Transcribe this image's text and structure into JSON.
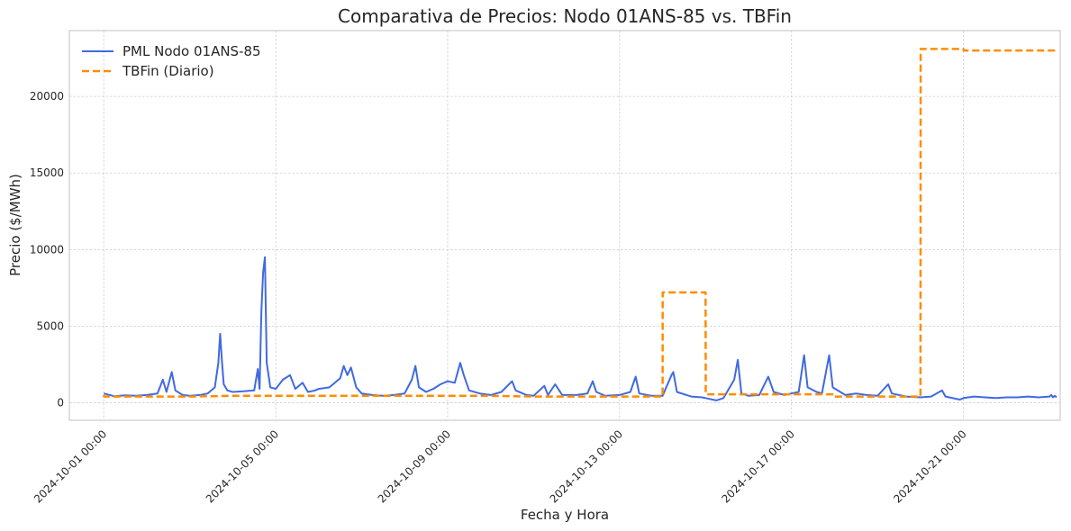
{
  "chart_data": {
    "type": "line",
    "title": "Comparativa de Precios: Nodo 01ANS-85 vs. TBFin",
    "xlabel": "Fecha y Hora",
    "ylabel": "Precio ($/MWh)",
    "xlim": [
      "2024-09-30T04:48",
      "2024-10-23T06:00"
    ],
    "ylim": [
      -1150,
      24300
    ],
    "x_ticks": [
      "2024-10-01 00:00",
      "2024-10-05 00:00",
      "2024-10-09 00:00",
      "2024-10-13 00:00",
      "2024-10-17 00:00",
      "2024-10-21 00:00"
    ],
    "y_ticks": [
      0,
      5000,
      10000,
      15000,
      20000
    ],
    "grid": true,
    "legend_position": "top-left",
    "colors": {
      "pml": "#4169e1",
      "tbfin": "#ff8c00",
      "grid": "#cccccc",
      "frame": "#cccccc"
    },
    "series": [
      {
        "name": "PML Nodo 01ANS-85",
        "style": "solid",
        "points": [
          [
            "2024-10-01T00:00",
            600
          ],
          [
            "2024-10-01T06:00",
            420
          ],
          [
            "2024-10-01T12:00",
            480
          ],
          [
            "2024-10-01T18:00",
            450
          ],
          [
            "2024-10-02T00:00",
            500
          ],
          [
            "2024-10-02T06:00",
            600
          ],
          [
            "2024-10-02T09:00",
            1500
          ],
          [
            "2024-10-02T11:00",
            700
          ],
          [
            "2024-10-02T14:00",
            2000
          ],
          [
            "2024-10-02T16:00",
            800
          ],
          [
            "2024-10-02T20:00",
            500
          ],
          [
            "2024-10-03T00:00",
            450
          ],
          [
            "2024-10-03T06:00",
            500
          ],
          [
            "2024-10-03T10:00",
            600
          ],
          [
            "2024-10-03T14:00",
            1000
          ],
          [
            "2024-10-03T16:00",
            2600
          ],
          [
            "2024-10-03T17:00",
            4500
          ],
          [
            "2024-10-03T18:00",
            2700
          ],
          [
            "2024-10-03T19:00",
            1200
          ],
          [
            "2024-10-03T21:00",
            800
          ],
          [
            "2024-10-04T00:00",
            700
          ],
          [
            "2024-10-04T06:00",
            750
          ],
          [
            "2024-10-04T12:00",
            800
          ],
          [
            "2024-10-04T14:00",
            2200
          ],
          [
            "2024-10-04T15:00",
            900
          ],
          [
            "2024-10-04T16:00",
            6000
          ],
          [
            "2024-10-04T17:00",
            8500
          ],
          [
            "2024-10-04T18:00",
            9500
          ],
          [
            "2024-10-04T19:00",
            2600
          ],
          [
            "2024-10-04T21:00",
            1000
          ],
          [
            "2024-10-05T00:00",
            900
          ],
          [
            "2024-10-05T04:00",
            1500
          ],
          [
            "2024-10-05T08:00",
            1800
          ],
          [
            "2024-10-05T11:00",
            900
          ],
          [
            "2024-10-05T15:00",
            1300
          ],
          [
            "2024-10-05T18:00",
            700
          ],
          [
            "2024-10-05T22:00",
            800
          ],
          [
            "2024-10-06T00:00",
            900
          ],
          [
            "2024-10-06T06:00",
            1000
          ],
          [
            "2024-10-06T12:00",
            1600
          ],
          [
            "2024-10-06T14:00",
            2400
          ],
          [
            "2024-10-06T16:00",
            1800
          ],
          [
            "2024-10-06T18:00",
            2300
          ],
          [
            "2024-10-06T21:00",
            1000
          ],
          [
            "2024-10-07T00:00",
            600
          ],
          [
            "2024-10-07T06:00",
            500
          ],
          [
            "2024-10-07T12:00",
            450
          ],
          [
            "2024-10-07T18:00",
            500
          ],
          [
            "2024-10-08T00:00",
            600
          ],
          [
            "2024-10-08T04:00",
            1500
          ],
          [
            "2024-10-08T06:00",
            2400
          ],
          [
            "2024-10-08T08:00",
            1000
          ],
          [
            "2024-10-08T12:00",
            700
          ],
          [
            "2024-10-08T16:00",
            900
          ],
          [
            "2024-10-08T20:00",
            1200
          ],
          [
            "2024-10-09T00:00",
            1400
          ],
          [
            "2024-10-09T04:00",
            1300
          ],
          [
            "2024-10-09T07:00",
            2600
          ],
          [
            "2024-10-09T09:00",
            1800
          ],
          [
            "2024-10-09T12:00",
            800
          ],
          [
            "2024-10-09T18:00",
            600
          ],
          [
            "2024-10-10T00:00",
            500
          ],
          [
            "2024-10-10T06:00",
            700
          ],
          [
            "2024-10-10T12:00",
            1400
          ],
          [
            "2024-10-10T14:00",
            800
          ],
          [
            "2024-10-10T20:00",
            500
          ],
          [
            "2024-10-11T00:00",
            450
          ],
          [
            "2024-10-11T06:00",
            1100
          ],
          [
            "2024-10-11T08:00",
            500
          ],
          [
            "2024-10-11T12:00",
            1200
          ],
          [
            "2024-10-11T16:00",
            500
          ],
          [
            "2024-10-12T00:00",
            500
          ],
          [
            "2024-10-12T06:00",
            600
          ],
          [
            "2024-10-12T09:00",
            1400
          ],
          [
            "2024-10-12T11:00",
            700
          ],
          [
            "2024-10-12T16:00",
            450
          ],
          [
            "2024-10-13T00:00",
            500
          ],
          [
            "2024-10-13T06:00",
            700
          ],
          [
            "2024-10-13T09:00",
            1700
          ],
          [
            "2024-10-13T11:00",
            600
          ],
          [
            "2024-10-13T18:00",
            450
          ],
          [
            "2024-10-14T00:00",
            450
          ],
          [
            "2024-10-14T05:00",
            1800
          ],
          [
            "2024-10-14T06:00",
            2000
          ],
          [
            "2024-10-14T08:00",
            700
          ],
          [
            "2024-10-14T16:00",
            400
          ],
          [
            "2024-10-14T22:00",
            350
          ],
          [
            "2024-10-15T00:00",
            300
          ],
          [
            "2024-10-15T06:00",
            150
          ],
          [
            "2024-10-15T10:00",
            300
          ],
          [
            "2024-10-15T16:00",
            1500
          ],
          [
            "2024-10-15T18:00",
            2800
          ],
          [
            "2024-10-15T20:00",
            600
          ],
          [
            "2024-10-16T00:00",
            450
          ],
          [
            "2024-10-16T06:00",
            500
          ],
          [
            "2024-10-16T11:00",
            1700
          ],
          [
            "2024-10-16T14:00",
            700
          ],
          [
            "2024-10-16T20:00",
            500
          ],
          [
            "2024-10-17T00:00",
            600
          ],
          [
            "2024-10-17T04:00",
            700
          ],
          [
            "2024-10-17T07:00",
            3100
          ],
          [
            "2024-10-17T09:00",
            1000
          ],
          [
            "2024-10-17T14:00",
            700
          ],
          [
            "2024-10-17T17:00",
            600
          ],
          [
            "2024-10-17T21:00",
            3100
          ],
          [
            "2024-10-17T23:00",
            1000
          ],
          [
            "2024-10-18T06:00",
            500
          ],
          [
            "2024-10-18T12:00",
            600
          ],
          [
            "2024-10-18T18:00",
            500
          ],
          [
            "2024-10-19T00:00",
            450
          ],
          [
            "2024-10-19T06:00",
            1200
          ],
          [
            "2024-10-19T08:00",
            600
          ],
          [
            "2024-10-19T16:00",
            400
          ],
          [
            "2024-10-20T00:00",
            350
          ],
          [
            "2024-10-20T06:00",
            400
          ],
          [
            "2024-10-20T12:00",
            800
          ],
          [
            "2024-10-20T14:00",
            400
          ],
          [
            "2024-10-20T22:00",
            200
          ],
          [
            "2024-10-21T00:00",
            300
          ],
          [
            "2024-10-21T06:00",
            400
          ],
          [
            "2024-10-21T12:00",
            350
          ],
          [
            "2024-10-21T18:00",
            300
          ],
          [
            "2024-10-22T00:00",
            350
          ],
          [
            "2024-10-22T06:00",
            350
          ],
          [
            "2024-10-22T12:00",
            400
          ],
          [
            "2024-10-22T18:00",
            350
          ],
          [
            "2024-10-23T00:00",
            400
          ],
          [
            "2024-10-23T01:00",
            500
          ],
          [
            "2024-10-23T02:00",
            350
          ],
          [
            "2024-10-23T03:00",
            450
          ],
          [
            "2024-10-23T04:00",
            350
          ]
        ]
      },
      {
        "name": "TBFin (Diario)",
        "style": "dashed",
        "points": [
          [
            "2024-10-01T00:00",
            500
          ],
          [
            "2024-10-01T00:10",
            400
          ],
          [
            "2024-10-02T00:00",
            400
          ],
          [
            "2024-10-03T00:00",
            400
          ],
          [
            "2024-10-04T00:00",
            450
          ],
          [
            "2024-10-05T00:00",
            450
          ],
          [
            "2024-10-06T00:00",
            450
          ],
          [
            "2024-10-07T00:00",
            450
          ],
          [
            "2024-10-08T00:00",
            450
          ],
          [
            "2024-10-09T00:00",
            450
          ],
          [
            "2024-10-10T00:00",
            450
          ],
          [
            "2024-10-11T00:00",
            400
          ],
          [
            "2024-10-12T00:00",
            400
          ],
          [
            "2024-10-13T00:00",
            400
          ],
          [
            "2024-10-14T00:00",
            400
          ],
          [
            "2024-10-14T00:05",
            7200
          ],
          [
            "2024-10-15T00:00",
            7200
          ],
          [
            "2024-10-15T00:05",
            550
          ],
          [
            "2024-10-16T00:00",
            550
          ],
          [
            "2024-10-17T00:00",
            550
          ],
          [
            "2024-10-18T00:00",
            550
          ],
          [
            "2024-10-18T00:05",
            400
          ],
          [
            "2024-10-19T00:00",
            400
          ],
          [
            "2024-10-20T00:00",
            400
          ],
          [
            "2024-10-20T00:05",
            23100
          ],
          [
            "2024-10-21T00:00",
            23100
          ],
          [
            "2024-10-21T00:05",
            23000
          ],
          [
            "2024-10-22T00:00",
            23000
          ],
          [
            "2024-10-23T00:00",
            23000
          ],
          [
            "2024-10-23T04:00",
            23000
          ]
        ]
      }
    ]
  }
}
